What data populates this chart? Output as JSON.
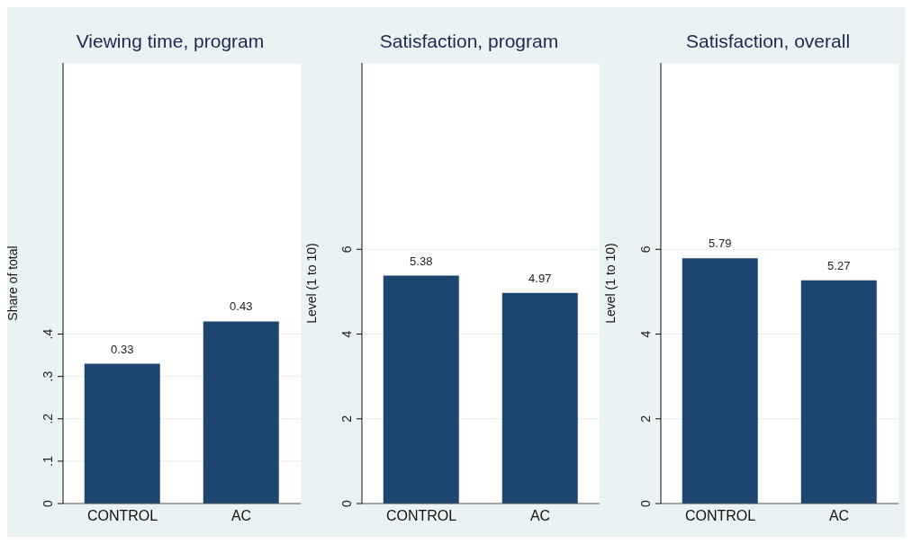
{
  "chart_data": [
    {
      "type": "bar",
      "title": "Viewing time, program",
      "ylabel": "Share of total",
      "categories": [
        "CONTROL",
        "AC"
      ],
      "values": [
        0.33,
        0.43
      ],
      "color": "#1c4670",
      "ylim": [
        0,
        1.04
      ],
      "yticks": [
        0,
        {
          "value": 0.1,
          "label": ".1"
        },
        {
          "value": 0.2,
          "label": ".2"
        },
        {
          "value": 0.3,
          "label": ".3"
        },
        {
          "value": 0.4,
          "label": ".4"
        }
      ],
      "grid": "y",
      "data_labels": true
    },
    {
      "type": "bar",
      "title": "Satisfaction, program",
      "ylabel": "Level (1 to 10)",
      "categories": [
        "CONTROL",
        "AC"
      ],
      "values": [
        5.38,
        4.97
      ],
      "color": "#1c4670",
      "ylim": [
        0,
        10.4
      ],
      "yticks": [
        0,
        2,
        4,
        6
      ],
      "grid": "y",
      "data_labels": true
    },
    {
      "type": "bar",
      "title": "Satisfaction, overall",
      "ylabel": "Level (1 to 10)",
      "categories": [
        "CONTROL",
        "AC"
      ],
      "values": [
        5.79,
        5.27
      ],
      "color": "#1c4670",
      "ylim": [
        0,
        10.4
      ],
      "yticks": [
        0,
        2,
        4,
        6
      ],
      "grid": "y",
      "data_labels": true
    }
  ]
}
